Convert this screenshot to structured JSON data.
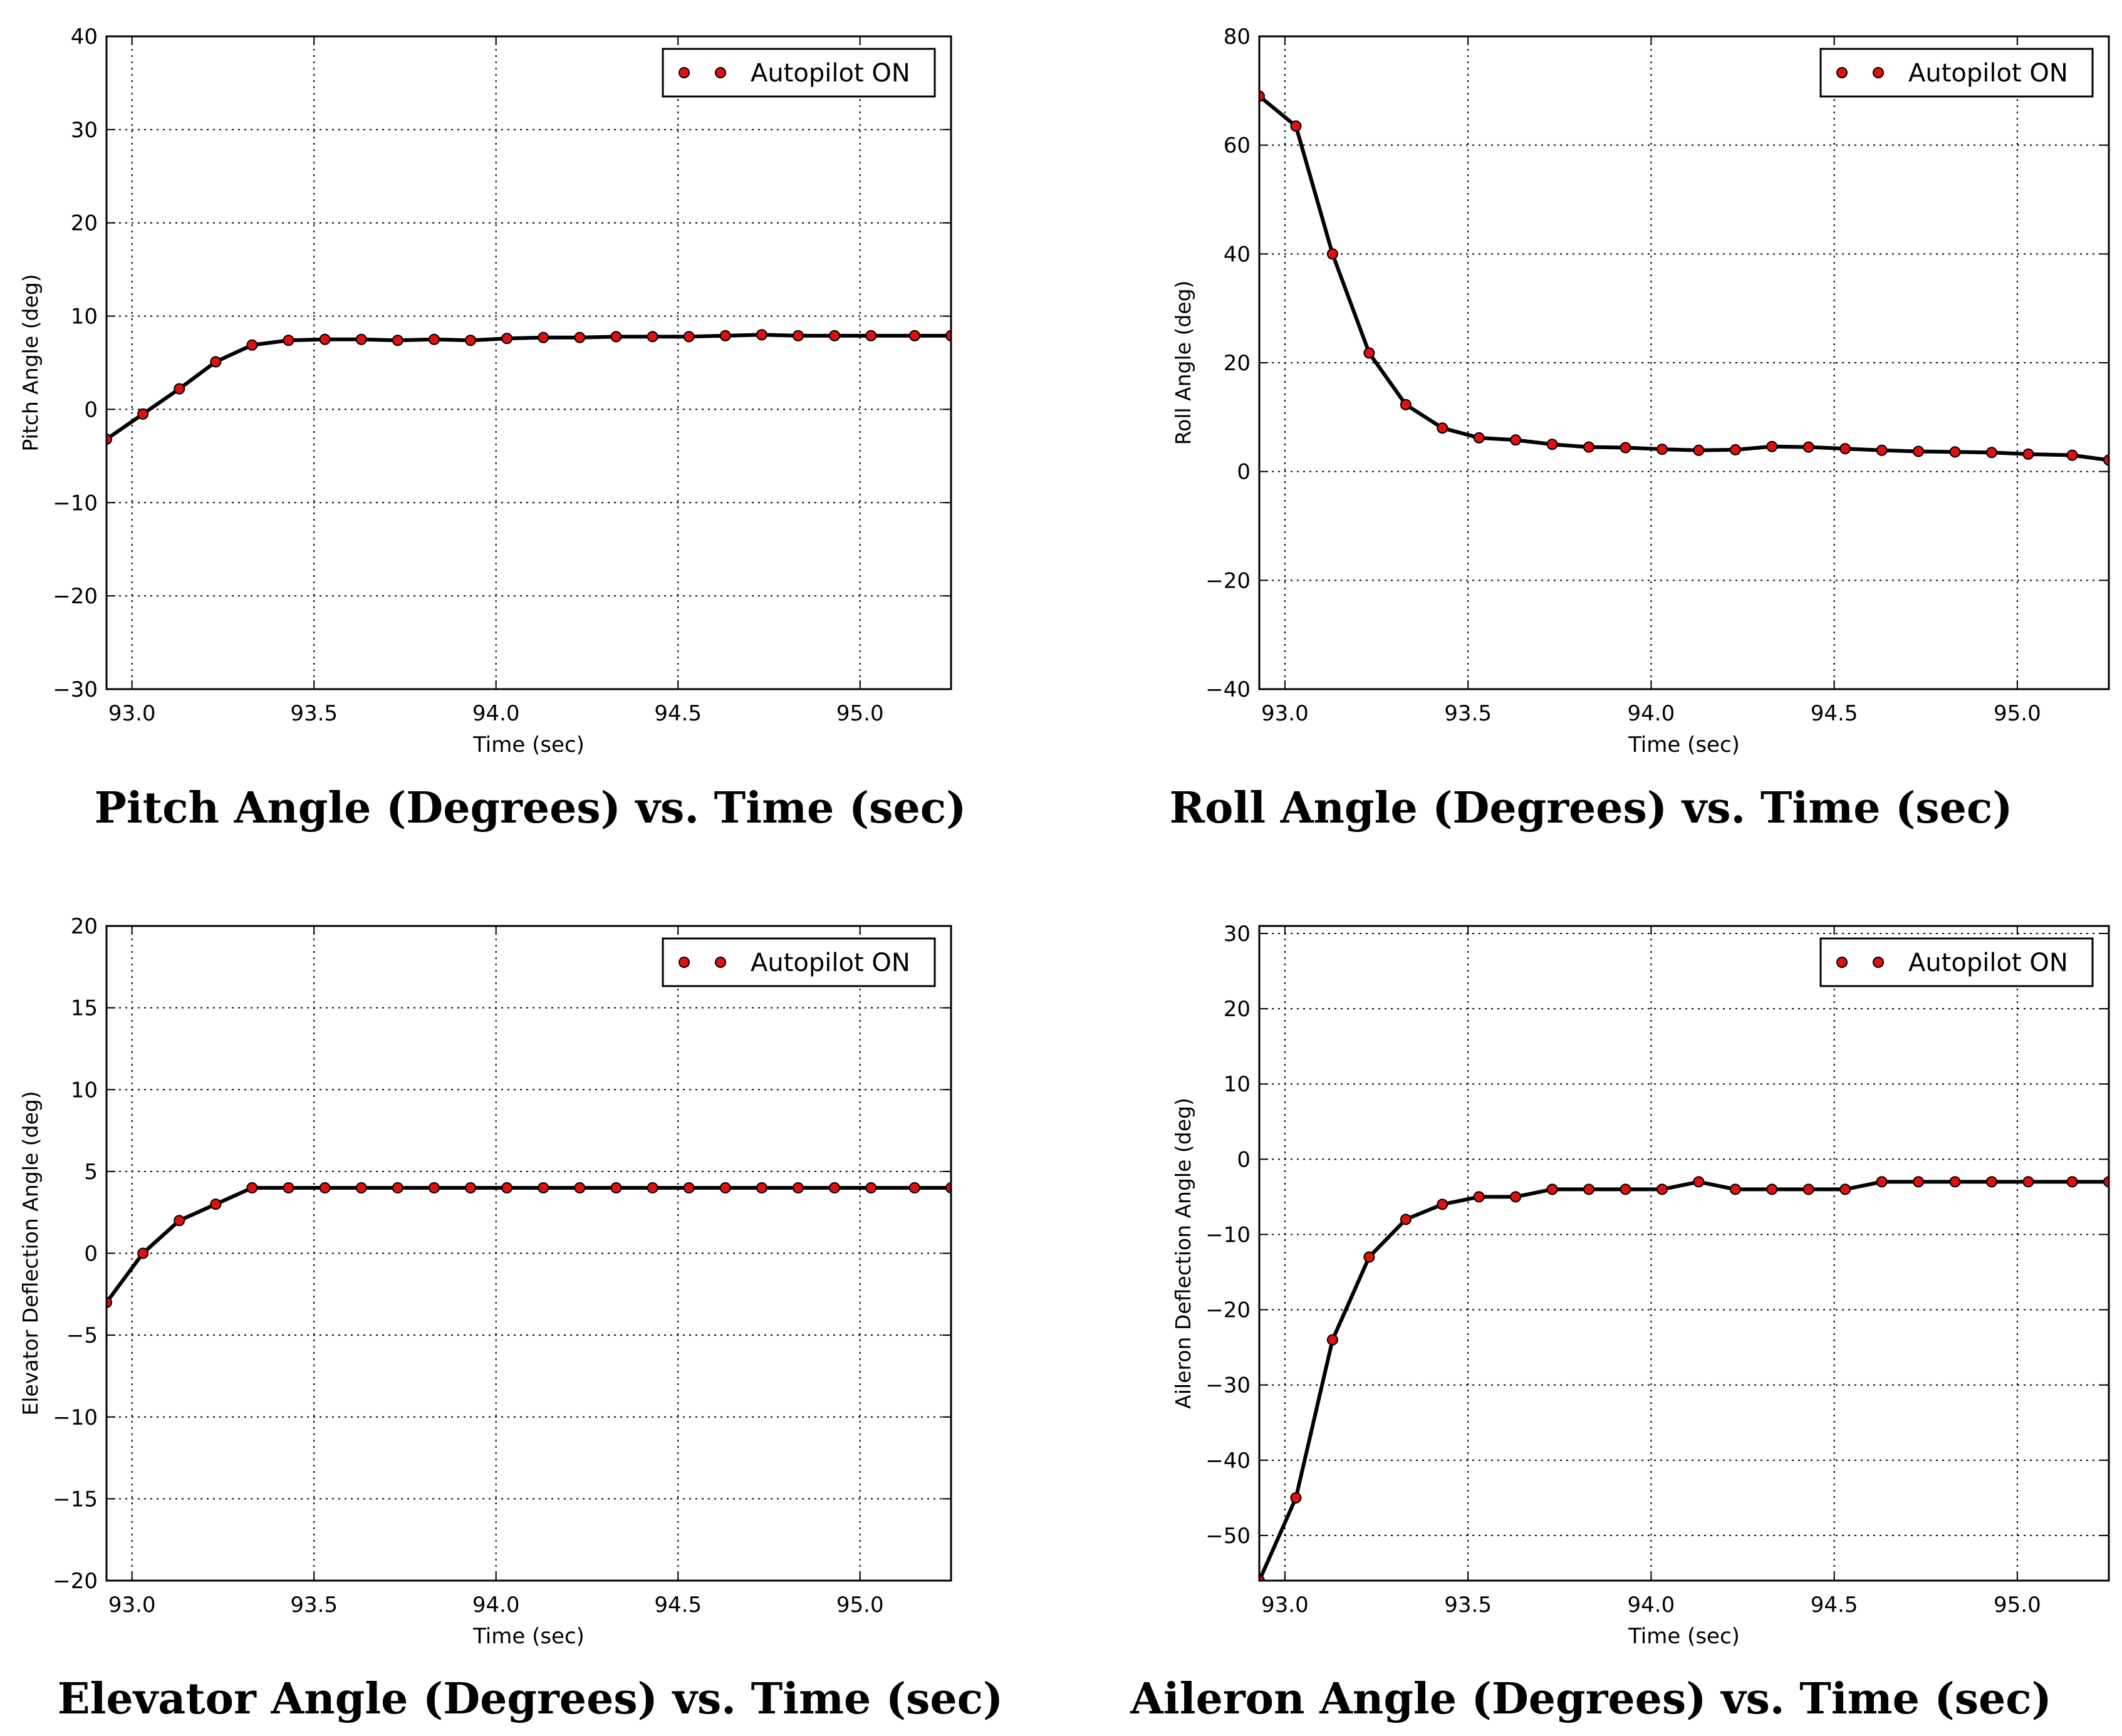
{
  "chart_data": [
    {
      "type": "line",
      "caption": "Pitch Angle (Degrees) vs. Time (sec)",
      "xlabel": "Time (sec)",
      "ylabel": "Pitch Angle (deg)",
      "xlim": [
        92.93,
        95.25
      ],
      "ylim": [
        -30,
        40
      ],
      "xticks": [
        93.0,
        93.5,
        94.0,
        94.5,
        95.0
      ],
      "xtick_labels": [
        "93.0",
        "93.5",
        "94.0",
        "94.5",
        "95.0"
      ],
      "yticks": [
        -30,
        -20,
        -10,
        0,
        10,
        20,
        30,
        40
      ],
      "ytick_labels": [
        "−30",
        "−20",
        "−10",
        "0",
        "10",
        "20",
        "30",
        "40"
      ],
      "grid": true,
      "legend": "top-right",
      "series": [
        {
          "name": "Autopilot ON",
          "x": [
            92.93,
            93.03,
            93.13,
            93.23,
            93.33,
            93.43,
            93.53,
            93.63,
            93.73,
            93.83,
            93.93,
            94.03,
            94.13,
            94.23,
            94.33,
            94.43,
            94.53,
            94.63,
            94.73,
            94.83,
            94.93,
            95.03,
            95.15,
            95.25
          ],
          "y": [
            -3.2,
            -0.5,
            2.2,
            5.1,
            6.9,
            7.4,
            7.5,
            7.5,
            7.4,
            7.5,
            7.4,
            7.6,
            7.7,
            7.7,
            7.8,
            7.8,
            7.8,
            7.9,
            8.0,
            7.9,
            7.9,
            7.9,
            7.9,
            7.9
          ],
          "markers": true
        }
      ]
    },
    {
      "type": "line",
      "caption": "Roll Angle (Degrees) vs. Time (sec)",
      "xlabel": "Time (sec)",
      "ylabel": "Roll Angle (deg)",
      "xlim": [
        92.93,
        95.25
      ],
      "ylim": [
        -40,
        80
      ],
      "xticks": [
        93.0,
        93.5,
        94.0,
        94.5,
        95.0
      ],
      "xtick_labels": [
        "93.0",
        "93.5",
        "94.0",
        "94.5",
        "95.0"
      ],
      "yticks": [
        -40,
        -20,
        0,
        20,
        40,
        60,
        80
      ],
      "ytick_labels": [
        "−40",
        "−20",
        "0",
        "20",
        "40",
        "60",
        "80"
      ],
      "grid": true,
      "legend": "top-right",
      "series": [
        {
          "name": "Autopilot ON",
          "x": [
            92.93,
            93.03,
            93.13,
            93.23,
            93.33,
            93.43,
            93.53,
            93.63,
            93.73,
            93.83,
            93.93,
            94.03,
            94.13,
            94.23,
            94.33,
            94.43,
            94.53,
            94.63,
            94.73,
            94.83,
            94.93,
            95.03,
            95.15,
            95.25
          ],
          "y": [
            69,
            63.5,
            40,
            21.8,
            12.3,
            8.0,
            6.2,
            5.8,
            5.0,
            4.5,
            4.4,
            4.1,
            3.9,
            4.0,
            4.6,
            4.5,
            4.2,
            3.9,
            3.7,
            3.6,
            3.5,
            3.2,
            3.0,
            2.1
          ],
          "markers": true
        }
      ]
    },
    {
      "type": "line",
      "caption": "Elevator Angle (Degrees) vs. Time (sec)",
      "xlabel": "Time (sec)",
      "ylabel": "Elevator Deflection Angle (deg)",
      "xlim": [
        92.93,
        95.25
      ],
      "ylim": [
        -20,
        20
      ],
      "xticks": [
        93.0,
        93.5,
        94.0,
        94.5,
        95.0
      ],
      "xtick_labels": [
        "93.0",
        "93.5",
        "94.0",
        "94.5",
        "95.0"
      ],
      "yticks": [
        -20,
        -15,
        -10,
        -5,
        0,
        5,
        10,
        15,
        20
      ],
      "ytick_labels": [
        "−20",
        "−15",
        "−10",
        "−5",
        "0",
        "5",
        "10",
        "15",
        "20"
      ],
      "grid": true,
      "legend": "top-right",
      "series": [
        {
          "name": "Autopilot ON",
          "x": [
            92.93,
            93.03,
            93.13,
            93.23,
            93.33,
            93.43,
            93.53,
            93.63,
            93.73,
            93.83,
            93.93,
            94.03,
            94.13,
            94.23,
            94.33,
            94.43,
            94.53,
            94.63,
            94.73,
            94.83,
            94.93,
            95.03,
            95.15,
            95.25
          ],
          "y": [
            -3,
            0,
            2,
            3,
            4,
            4,
            4,
            4,
            4,
            4,
            4,
            4,
            4,
            4,
            4,
            4,
            4,
            4,
            4,
            4,
            4,
            4,
            4,
            4
          ],
          "markers": true
        }
      ]
    },
    {
      "type": "line",
      "caption": "Aileron Angle (Degrees) vs. Time (sec)",
      "xlabel": "Time (sec)",
      "ylabel": "Aileron Deflection Angle (deg)",
      "xlim": [
        92.93,
        95.25
      ],
      "ylim": [
        -56,
        31
      ],
      "xticks": [
        93.0,
        93.5,
        94.0,
        94.5,
        95.0
      ],
      "xtick_labels": [
        "93.0",
        "93.5",
        "94.0",
        "94.5",
        "95.0"
      ],
      "yticks": [
        -50,
        -40,
        -30,
        -20,
        -10,
        0,
        10,
        20,
        30
      ],
      "ytick_labels": [
        "−50",
        "−40",
        "−30",
        "−20",
        "−10",
        "0",
        "10",
        "20",
        "30"
      ],
      "grid": true,
      "legend": "top-right",
      "series": [
        {
          "name": "Autopilot ON",
          "x": [
            92.93,
            93.03,
            93.13,
            93.23,
            93.33,
            93.43,
            93.53,
            93.63,
            93.73,
            93.83,
            93.93,
            94.03,
            94.13,
            94.23,
            94.33,
            94.43,
            94.53,
            94.63,
            94.73,
            94.83,
            94.93,
            95.03,
            95.15,
            95.25
          ],
          "y": [
            -56,
            -45,
            -24,
            -13,
            -8,
            -6,
            -5,
            -5,
            -4,
            -4,
            -4,
            -4,
            -3,
            -4,
            -4,
            -4,
            -4,
            -3,
            -3,
            -3,
            -3,
            -3,
            -3,
            -3
          ],
          "markers": true
        }
      ]
    }
  ]
}
